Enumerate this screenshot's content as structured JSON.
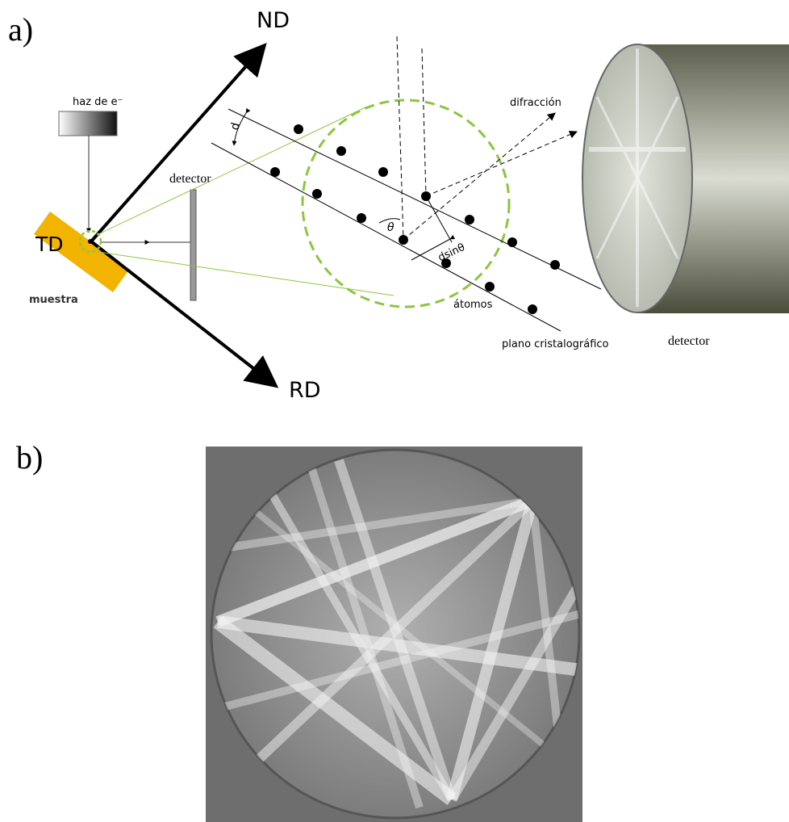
{
  "panel_a": {
    "label": "a)",
    "axis_nd": "ND",
    "axis_rd": "RD",
    "axis_td": "TD",
    "beam": "haz de e⁻",
    "sample": "muestra",
    "detector_left": "detector",
    "spacing": "d",
    "angle": "θ",
    "path_difference": "dsinθ",
    "diffraction": "difracción",
    "atoms": "átomos",
    "plane": "plano cristalográfico",
    "detector_right": "detector"
  },
  "panel_b": {
    "label": "b)"
  }
}
